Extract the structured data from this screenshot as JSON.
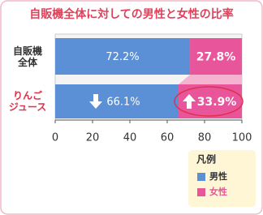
{
  "chart_data": {
    "type": "stacked-bar-horizontal",
    "title": "自販機全体に対しての男性と女性の比率",
    "categories": [
      "自販機\n全体",
      "りんご\nジュース"
    ],
    "series": [
      {
        "name": "男性",
        "color": "#5b8fd6",
        "values": [
          72.2,
          66.1
        ],
        "value_labels": [
          "72.2%",
          "66.1%"
        ]
      },
      {
        "name": "女性",
        "color": "#e8559a",
        "values": [
          27.8,
          33.9
        ],
        "value_labels": [
          "27.8%",
          "33.9%"
        ]
      }
    ],
    "xlim": [
      0,
      100
    ],
    "xticks": [
      0,
      20,
      40,
      60,
      80,
      100
    ],
    "legend_title": "凡例",
    "legend_position": "lower right"
  }
}
